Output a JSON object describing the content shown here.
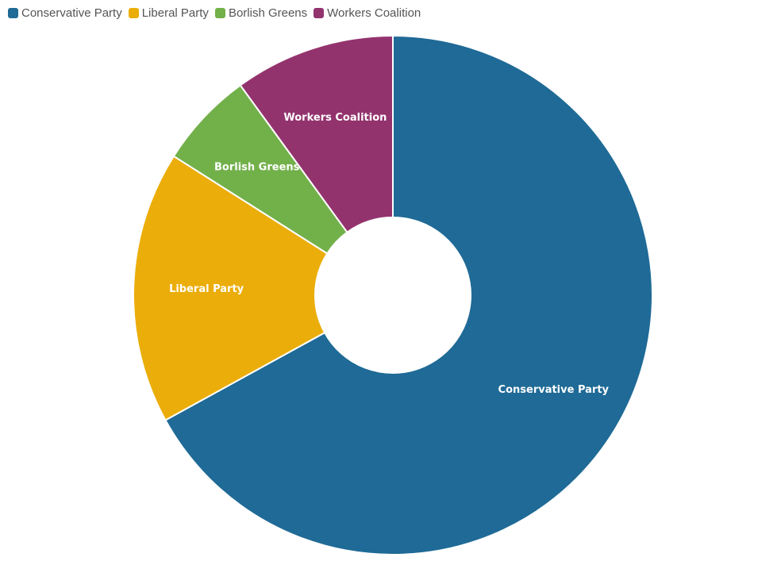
{
  "chart_data": {
    "type": "pie",
    "donut": true,
    "legend_position": "top-left",
    "categories": [
      "Conservative Party",
      "Liberal Party",
      "Borlish Greens",
      "Workers Coalition"
    ],
    "values": [
      67,
      17,
      6,
      10
    ],
    "colors": [
      "#1f6a96",
      "#ebad0a",
      "#72b04a",
      "#93336e"
    ]
  }
}
